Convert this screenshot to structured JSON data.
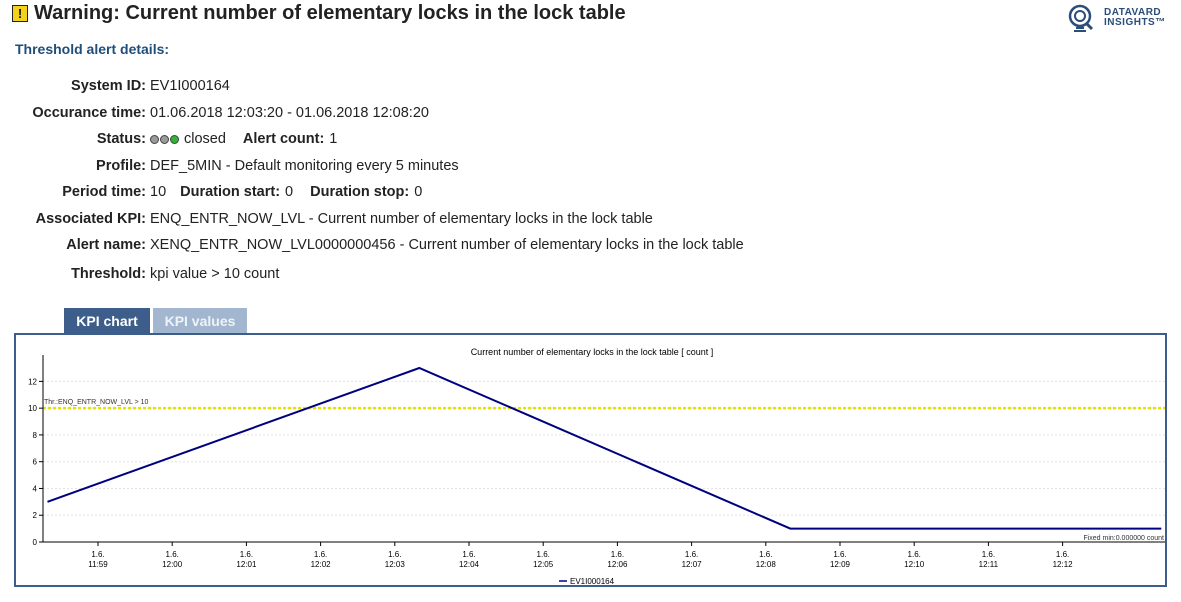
{
  "header": {
    "warning_icon": "!",
    "title": "Warning: Current number of elementary locks in the lock table",
    "logo_icon": "datavard-logo-icon",
    "logo_line1": "DATAVARD",
    "logo_line2": "INSIGHTS™"
  },
  "subtitle": "Threshold alert details:",
  "details": {
    "system_id": {
      "label": "System ID:",
      "value": "EV1I000164"
    },
    "occurance_time": {
      "label": "Occurance time:",
      "value": "01.06.2018 12:03:20 - 01.06.2018 12:08:20"
    },
    "status": {
      "label": "Status:",
      "value": "closed",
      "lights": [
        "#9a9a9a",
        "#9a9a9a",
        "#2fb52f"
      ],
      "alert_count_label": "Alert count:",
      "alert_count_value": "1"
    },
    "profile": {
      "label": "Profile:",
      "value": "DEF_5MIN - Default monitoring every 5 minutes"
    },
    "period": {
      "label": "Period time:",
      "value": "10",
      "duration_start_label": "Duration start:",
      "duration_start_value": "0",
      "duration_stop_label": "Duration stop:",
      "duration_stop_value": "0"
    },
    "kpi": {
      "label": "Associated KPI:",
      "value": "ENQ_ENTR_NOW_LVL - Current number of elementary locks in the lock table"
    },
    "alert_name": {
      "label": "Alert name:",
      "value": "XENQ_ENTR_NOW_LVL0000000456 - Current number of elementary locks in the lock table"
    },
    "threshold": {
      "label": "Threshold:",
      "value": "kpi value > 10 count"
    }
  },
  "tabs": [
    {
      "label": "KPI chart",
      "active": true
    },
    {
      "label": "KPI values",
      "active": false
    }
  ],
  "chart_data": {
    "type": "line",
    "title": "Current number of elementary locks in the lock table [ count  ]",
    "xlabel": "",
    "ylabel": "",
    "ylim": [
      0,
      13
    ],
    "yticks": [
      "0",
      "2",
      "4",
      "6",
      "8",
      "10",
      "12"
    ],
    "xticks": [
      {
        "t": 0,
        "date": "1.6.",
        "time": "11:59"
      },
      {
        "t": 1,
        "date": "1.6.",
        "time": "12:00"
      },
      {
        "t": 2,
        "date": "1.6.",
        "time": "12:01"
      },
      {
        "t": 3,
        "date": "1.6.",
        "time": "12:02"
      },
      {
        "t": 4,
        "date": "1.6.",
        "time": "12:03"
      },
      {
        "t": 5,
        "date": "1.6.",
        "time": "12:04"
      },
      {
        "t": 6,
        "date": "1.6.",
        "time": "12:05"
      },
      {
        "t": 7,
        "date": "1.6.",
        "time": "12:06"
      },
      {
        "t": 8,
        "date": "1.6.",
        "time": "12:07"
      },
      {
        "t": 9,
        "date": "1.6.",
        "time": "12:08"
      },
      {
        "t": 10,
        "date": "1.6.",
        "time": "12:09"
      },
      {
        "t": 11,
        "date": "1.6.",
        "time": "12:10"
      },
      {
        "t": 12,
        "date": "1.6.",
        "time": "12:11"
      },
      {
        "t": 13,
        "date": "1.6.",
        "time": "12:12"
      }
    ],
    "series": [
      {
        "name": "EV1I000164",
        "color": "#000080",
        "points": [
          {
            "t": -0.68,
            "y": 3
          },
          {
            "t": 4.33,
            "y": 13
          },
          {
            "t": 9.33,
            "y": 1
          },
          {
            "t": 14.33,
            "y": 1
          }
        ]
      }
    ],
    "threshold": {
      "label": "Thr.:ENQ_ENTR_NOW_LVL > 10",
      "value": 10,
      "color": "#e8e000"
    },
    "annotation": "Fixed min:0.000000 count",
    "grid": true,
    "legend": "bottom-center"
  }
}
